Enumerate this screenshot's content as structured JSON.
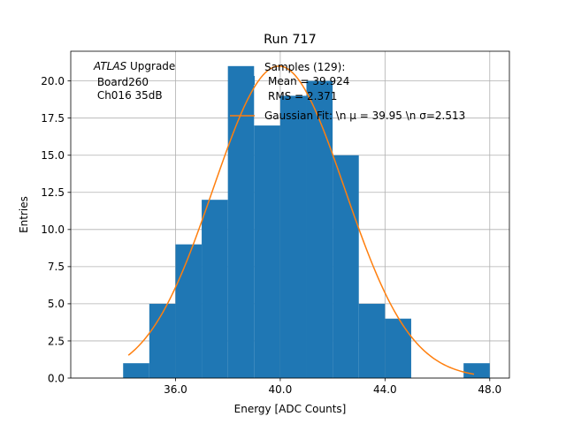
{
  "chart_data": {
    "type": "bar",
    "title": "Run 717",
    "xlabel": "Energy [ADC Counts]",
    "ylabel": "Entries",
    "xlim": [
      32.0,
      48.75
    ],
    "ylim": [
      0,
      22
    ],
    "x_ticks": [
      36.0,
      40.0,
      44.0,
      48.0
    ],
    "x_tick_labels": [
      "36.0",
      "40.0",
      "44.0",
      "48.0"
    ],
    "y_ticks": [
      0,
      2.5,
      5,
      7.5,
      10,
      12.5,
      15,
      17.5,
      20
    ],
    "y_tick_labels": [
      "0.0",
      "2.5",
      "5.0",
      "7.5",
      "10.0",
      "12.5",
      "15.0",
      "17.5",
      "20.0"
    ],
    "grid": true,
    "bin_width": 1,
    "bins": [
      {
        "x0": 34,
        "x1": 35,
        "count": 1
      },
      {
        "x0": 35,
        "x1": 36,
        "count": 5
      },
      {
        "x0": 36,
        "x1": 37,
        "count": 9
      },
      {
        "x0": 37,
        "x1": 38,
        "count": 12
      },
      {
        "x0": 38,
        "x1": 39,
        "count": 21
      },
      {
        "x0": 39,
        "x1": 40,
        "count": 17
      },
      {
        "x0": 40,
        "x1": 41,
        "count": 19
      },
      {
        "x0": 41,
        "x1": 42,
        "count": 20
      },
      {
        "x0": 42,
        "x1": 43,
        "count": 15
      },
      {
        "x0": 43,
        "x1": 44,
        "count": 5
      },
      {
        "x0": 44,
        "x1": 45,
        "count": 4
      },
      {
        "x0": 47,
        "x1": 48,
        "count": 1
      }
    ],
    "fit": {
      "type": "gaussian",
      "mu": 39.95,
      "sigma": 2.513,
      "x_range": [
        34.2,
        47.4
      ]
    },
    "colors": {
      "histogram": "#1f77b4",
      "fit": "#ff7f0e",
      "grid": "#b0b0b0"
    },
    "legend": {
      "placement": "top-right",
      "entries": [
        {
          "label": "Samples (129):",
          "color": "#1f77b4",
          "marker": "patch"
        },
        {
          "label": "Mean = 39.924",
          "color": null,
          "marker": "none"
        },
        {
          "label": "RMS = 2.371",
          "color": null,
          "marker": "none"
        },
        {
          "label": "Gaussian Fit: \\n $\\mu$ = 39.95 \\n $\\sigma$=2.513",
          "display": "Gaussian Fit: \\n μ = 39.95 \\n σ=2.513",
          "color": "#ff7f0e",
          "marker": "line"
        }
      ]
    },
    "annotation": {
      "lines": [
        "ATLAS Upgrade",
        " Board260",
        " Ch016 35dB"
      ],
      "italic_word": "ATLAS",
      "rest_first_line": " Upgrade"
    }
  }
}
